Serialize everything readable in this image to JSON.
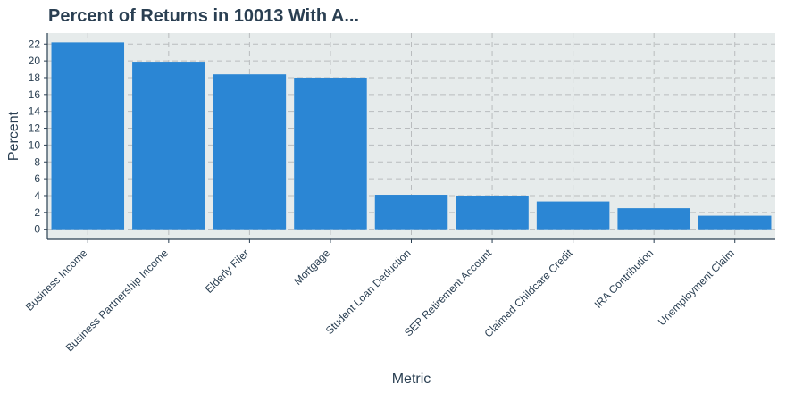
{
  "chart_data": {
    "type": "bar",
    "title": "Percent of Returns in 10013 With A...",
    "xlabel": "Metric",
    "ylabel": "Percent",
    "categories": [
      "Business Income",
      "Business Partnership Income",
      "Elderly Filer",
      "Mortgage",
      "Student Loan Deduction",
      "SEP Retirement Account",
      "Claimed Childcare Credit",
      "IRA Contribution",
      "Unemployment Claim"
    ],
    "values": [
      22.2,
      19.9,
      18.4,
      18.0,
      4.1,
      4.0,
      3.3,
      2.5,
      1.6
    ],
    "yticks": [
      0,
      2,
      4,
      6,
      8,
      10,
      12,
      14,
      16,
      18,
      20,
      22
    ],
    "ylim": [
      -1.2,
      23.3
    ],
    "grid": true,
    "colors": {
      "bar": "#2b86d4",
      "panel": "#e6ebeb",
      "text": "#2a3f52",
      "grid": "#b9bcbe"
    }
  }
}
